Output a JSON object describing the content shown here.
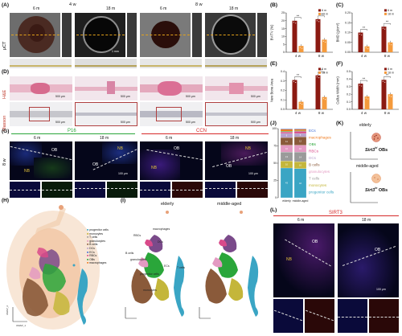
{
  "panels": {
    "A": "(A)",
    "B": "(B)",
    "C": "(C)",
    "D": "(D)",
    "E": "(E)",
    "F": "(F)",
    "G": "(G)",
    "H": "(H)",
    "I": "(I)",
    "J": "(J)",
    "K": "(K)",
    "L": "(L)"
  },
  "panelA": {
    "week4": "4 w",
    "week8": "8 w",
    "m6a": "6 m",
    "m18a": "18 m",
    "m6b": "6 m",
    "m18b": "18 m",
    "rowlabel": "μCT",
    "scale": "1 mm"
  },
  "panelD": {
    "row1": "H&E",
    "row2": "Masson",
    "scale": "500 μm"
  },
  "panelG": {
    "p16": "P16",
    "ccn": "CCN",
    "m6a": "6 m",
    "m18a": "18 m",
    "m6b": "6 m",
    "m18b": "18 m",
    "week": "8 w",
    "ob": "OB",
    "nb": "NB",
    "scale": "100 μm"
  },
  "panelH": {
    "legend": [
      "progenitor cells",
      "monocytes",
      "T cells",
      "granulocytes",
      "B cells",
      "DCs",
      "ECs",
      "RBCs",
      "OBs",
      "macrophages"
    ],
    "umap1": "UMAP_1",
    "umap2": "UMAP_2"
  },
  "panelI": {
    "elderly": "elderly",
    "middle": "middle-aged",
    "labels": [
      "RBCs",
      "macrophages",
      "DCs",
      "B cells",
      "granulocytes",
      "ECs",
      "progenitor cells",
      "monocytes",
      "T cells"
    ]
  },
  "panelJ": {
    "legend": [
      "ECs",
      "macrophages",
      "OBs",
      "RBCs",
      "DCs",
      "B cells",
      "granulocytes",
      "T cells",
      "monocytes",
      "progenitor cells"
    ],
    "xlabels": [
      "elderly",
      "middle-aged"
    ],
    "yticks": [
      "0",
      "25",
      "50",
      "75",
      "100"
    ]
  },
  "panelK": {
    "elderly": "elderly",
    "middle": "middle-aged",
    "gene": "Sirt3",
    "suffixHigh": "hi",
    "suffixLow": "lo",
    "cells": "OBs"
  },
  "panelL": {
    "title": "SIRT3",
    "m6": "6 m",
    "m18": "18 m",
    "ob": "OB",
    "nb": "NB",
    "scale": "100 μm"
  },
  "chart_data": [
    {
      "type": "bar",
      "title": "",
      "ylabel": "BV/TV (%)",
      "categories": [
        "4 w",
        "8 w"
      ],
      "series": [
        {
          "name": "6 m",
          "values": [
            20,
            21
          ]
        },
        {
          "name": "18 m",
          "values": [
            4,
            8
          ]
        }
      ],
      "ylim": [
        0,
        25
      ],
      "yticks": [
        "0",
        "5",
        "10",
        "15",
        "20",
        "25"
      ],
      "sig": [
        "**",
        "**"
      ]
    },
    {
      "type": "bar",
      "title": "",
      "ylabel": "BMD (g/cm³)",
      "categories": [
        "4 w",
        "8 w"
      ],
      "series": [
        {
          "name": "6 m",
          "values": [
            0.1,
            0.13
          ]
        },
        {
          "name": "18 m",
          "values": [
            0.03,
            0.05
          ]
        }
      ],
      "ylim": [
        0,
        0.2
      ],
      "yticks": [
        "0.00",
        "0.05",
        "0.10",
        "0.15",
        "0.20"
      ],
      "sig": [
        "**",
        "**"
      ]
    },
    {
      "type": "bar",
      "title": "",
      "ylabel": "New Bone Area",
      "categories": [
        "4 w",
        "8 w"
      ],
      "series": [
        {
          "name": "6 m",
          "values": [
            0.31,
            0.36
          ]
        },
        {
          "name": "18 m",
          "values": [
            0.08,
            0.13
          ]
        }
      ],
      "ylim": [
        0,
        0.4
      ],
      "yticks": [
        "0.0",
        "0.1",
        "0.2",
        "0.3",
        "0.4"
      ],
      "sig": [
        "**",
        "**"
      ]
    },
    {
      "type": "bar",
      "title": "",
      "ylabel": "Callus Width (mm)",
      "categories": [
        "4 w",
        "8 w"
      ],
      "series": [
        {
          "name": "6 m",
          "values": [
            0.34,
            0.39
          ]
        },
        {
          "name": "18 m",
          "values": [
            0.17,
            0.2
          ]
        }
      ],
      "ylim": [
        0,
        0.5
      ],
      "yticks": [
        "0.0",
        "0.1",
        "0.2",
        "0.3",
        "0.4",
        "0.5"
      ],
      "sig": [
        "**",
        "**"
      ]
    },
    {
      "type": "bar",
      "title": "",
      "ylabel": "",
      "categories": [
        "elderly",
        "middle-aged"
      ],
      "series": [
        {
          "name": "ECs",
          "values": [
            1,
            1
          ]
        },
        {
          "name": "macrophages",
          "values": [
            3,
            2
          ]
        },
        {
          "name": "OBs",
          "values": [
            1,
            1
          ]
        },
        {
          "name": "RBCs",
          "values": [
            2,
            3
          ]
        },
        {
          "name": "DCs",
          "values": [
            6,
            5
          ]
        },
        {
          "name": "B cells",
          "values": [
            11,
            12
          ]
        },
        {
          "name": "granulocytes",
          "values": [
            10,
            10
          ]
        },
        {
          "name": "T cells",
          "values": [
            13,
            14
          ]
        },
        {
          "name": "monocytes",
          "values": [
            10,
            10
          ]
        },
        {
          "name": "progenitor cells",
          "values": [
            43,
            42
          ]
        }
      ],
      "ylim": [
        0,
        100
      ]
    }
  ],
  "colors": {
    "m6": "#8b1a12",
    "m18": "#f49a3c",
    "ECs": "#3b6bd6",
    "macrophages": "#f07a1e",
    "OBs": "#2aa63a",
    "RBCs": "#d94a8a",
    "DCs": "#b7a0cc",
    "Bcells": "#8a5a3a",
    "granulocytes": "#e39ac2",
    "Tcells": "#9a9a9a",
    "monocytes": "#c4b63a",
    "progenitor": "#3aa5c4"
  }
}
